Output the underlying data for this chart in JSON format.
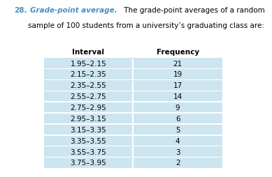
{
  "problem_number": "28.",
  "title_colored": "Grade-point average.",
  "title_line1_rest": " The grade-point averages of a random",
  "title_line2": "sample of 100 students from a university’s graduating class are:",
  "col_headers": [
    "Interval",
    "Frequency"
  ],
  "intervals": [
    "1.95–2.15",
    "2.15–2.35",
    "2.35–2.55",
    "2.55–2.75",
    "2.75–2.95",
    "2.95–3.15",
    "3.15–3.35",
    "3.35–3.55",
    "3.55–3.75",
    "3.75–3.95"
  ],
  "frequencies": [
    21,
    19,
    17,
    14,
    9,
    6,
    5,
    4,
    3,
    2
  ],
  "row_bg_color": "#cce5f0",
  "row_gap_color": "#ffffff",
  "header_color": "#000000",
  "title_highlight_color": "#4a8fbf",
  "problem_number_color": "#4a8fbf",
  "background_color": "#ffffff",
  "font_size_title": 7.5,
  "font_size_table": 7.5,
  "font_size_header": 7.5
}
